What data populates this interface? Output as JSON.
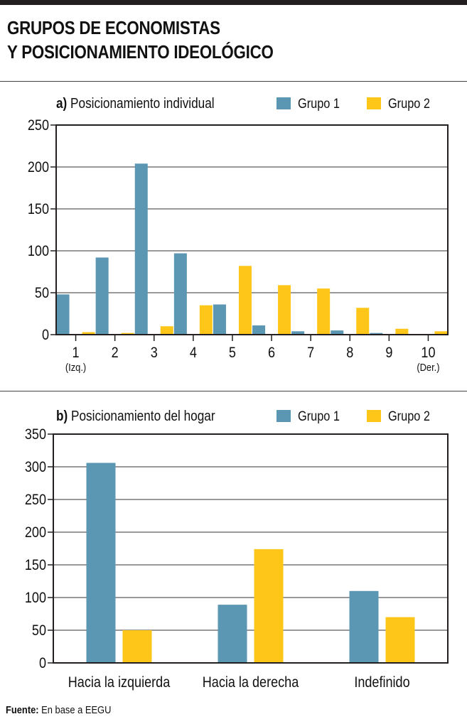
{
  "header": {
    "title_line1": "GRUPOS DE ECONOMISTAS",
    "title_line2": "Y POSICIONAMIENTO IDEOLÓGICO"
  },
  "footer": {
    "source_label": "Fuente:",
    "source_text": "En base a EEGU"
  },
  "colors": {
    "grupo1": "#5b96b3",
    "grupo2": "#ffc61a",
    "grid": "#333333",
    "frame": "#231f20"
  },
  "chart_data": [
    {
      "type": "bar",
      "panel_letter": "a)",
      "title": "Posicionamiento individual",
      "categories": [
        "1",
        "2",
        "3",
        "4",
        "5",
        "6",
        "7",
        "8",
        "9",
        "10"
      ],
      "category_notes": [
        "(Izq.)",
        "",
        "",
        "",
        "",
        "",
        "",
        "",
        "",
        "(Der.)"
      ],
      "series": [
        {
          "name": "Grupo 1",
          "values": [
            48,
            92,
            204,
            97,
            36,
            11,
            4,
            5,
            2,
            0
          ]
        },
        {
          "name": "Grupo 2",
          "values": [
            3,
            2,
            10,
            35,
            82,
            59,
            55,
            32,
            7,
            4
          ]
        }
      ],
      "ylim": [
        0,
        250
      ],
      "yticks": [
        0,
        50,
        100,
        150,
        200,
        250
      ],
      "grid": true,
      "legend_position": "top-right"
    },
    {
      "type": "bar",
      "panel_letter": "b)",
      "title": "Posicionamiento del hogar",
      "categories": [
        "Hacia la izquierda",
        "Hacia la derecha",
        "Indefinido"
      ],
      "series": [
        {
          "name": "Grupo 1",
          "values": [
            306,
            89,
            110
          ]
        },
        {
          "name": "Grupo 2",
          "values": [
            50,
            174,
            70
          ]
        }
      ],
      "ylim": [
        0,
        350
      ],
      "yticks": [
        0,
        50,
        100,
        150,
        200,
        250,
        300,
        350
      ],
      "grid": true,
      "legend_position": "top-right"
    }
  ]
}
